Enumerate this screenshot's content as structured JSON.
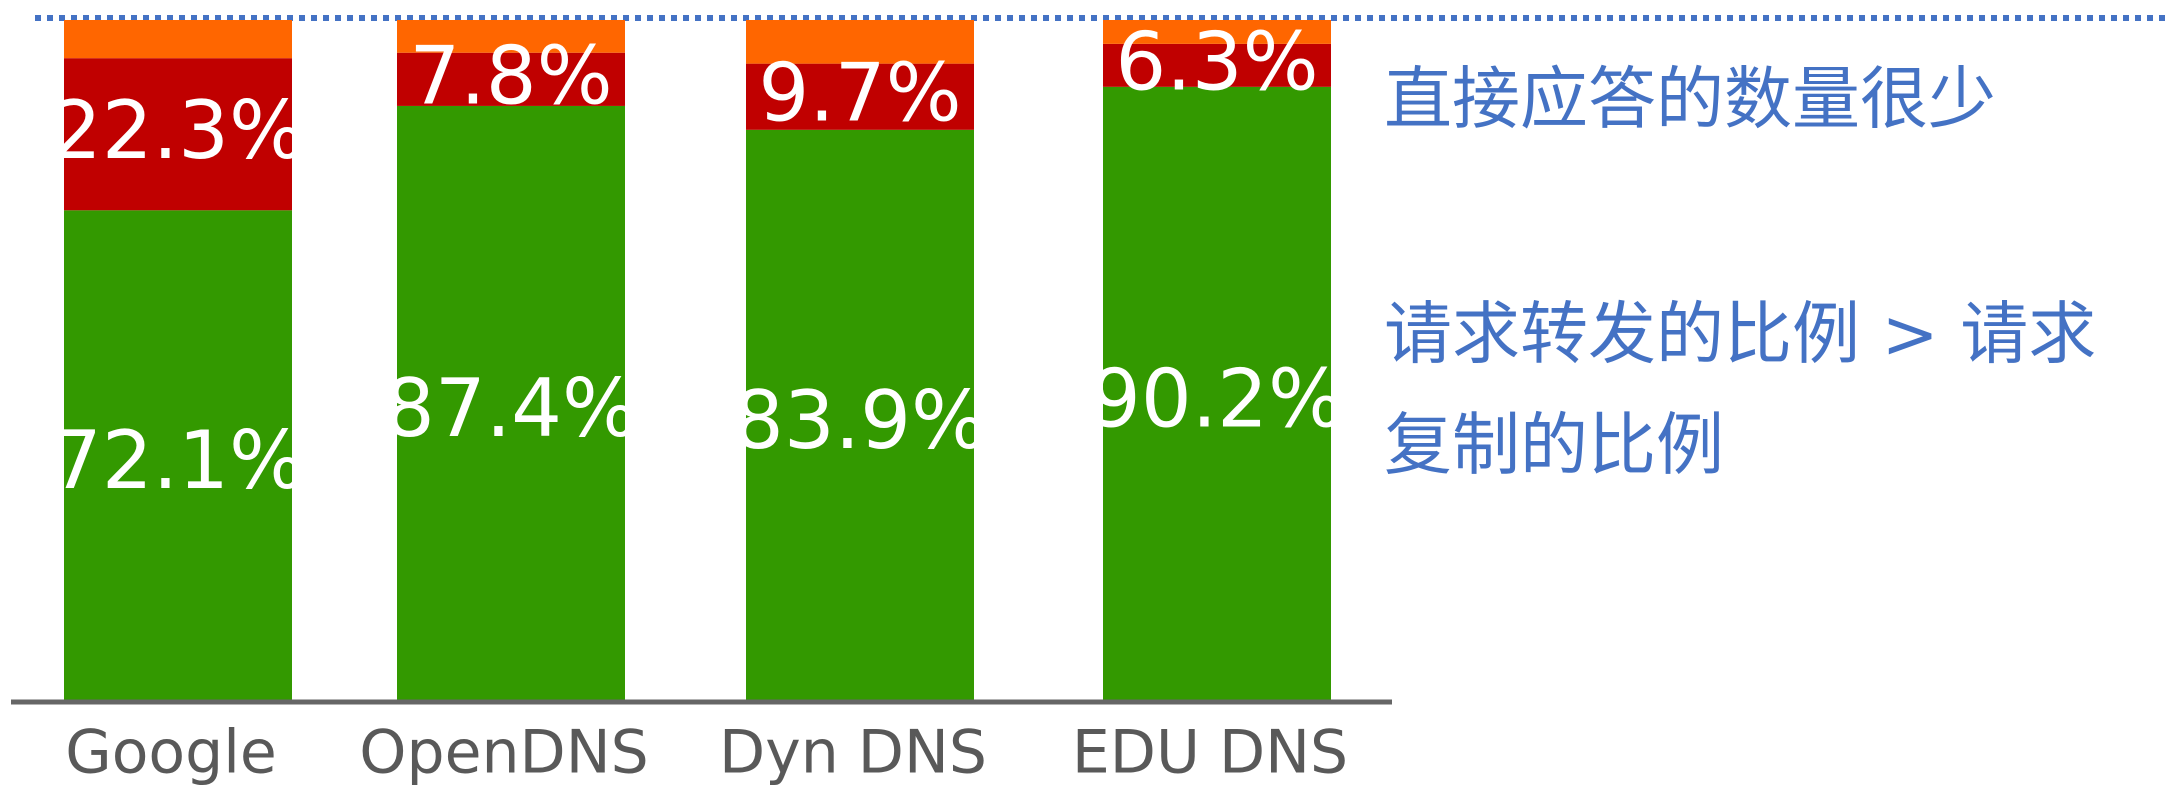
{
  "chart_data": {
    "type": "stacked_bar",
    "categories": [
      "Google",
      "OpenDNS",
      "Dyn DNS",
      "EDU DNS"
    ],
    "series": [
      {
        "color": "#339900",
        "values": [
          72.1,
          87.4,
          83.9,
          90.2
        ],
        "value_labels": [
          "72.1%",
          "87.4%",
          "83.9%",
          "90.2%"
        ]
      },
      {
        "color": "#c00000",
        "values": [
          22.3,
          7.8,
          9.7,
          6.3
        ],
        "value_labels": [
          "22.3%",
          "7.8%",
          "9.7%",
          "6.3%"
        ]
      },
      {
        "color": "#ff6600",
        "values": [
          5.6,
          4.8,
          6.4,
          3.5
        ]
      }
    ],
    "ylim": [
      0,
      100
    ],
    "annotations": [
      "直接应答的数量很少",
      "请求转发的比例 > 请求",
      "复制的比例"
    ]
  }
}
